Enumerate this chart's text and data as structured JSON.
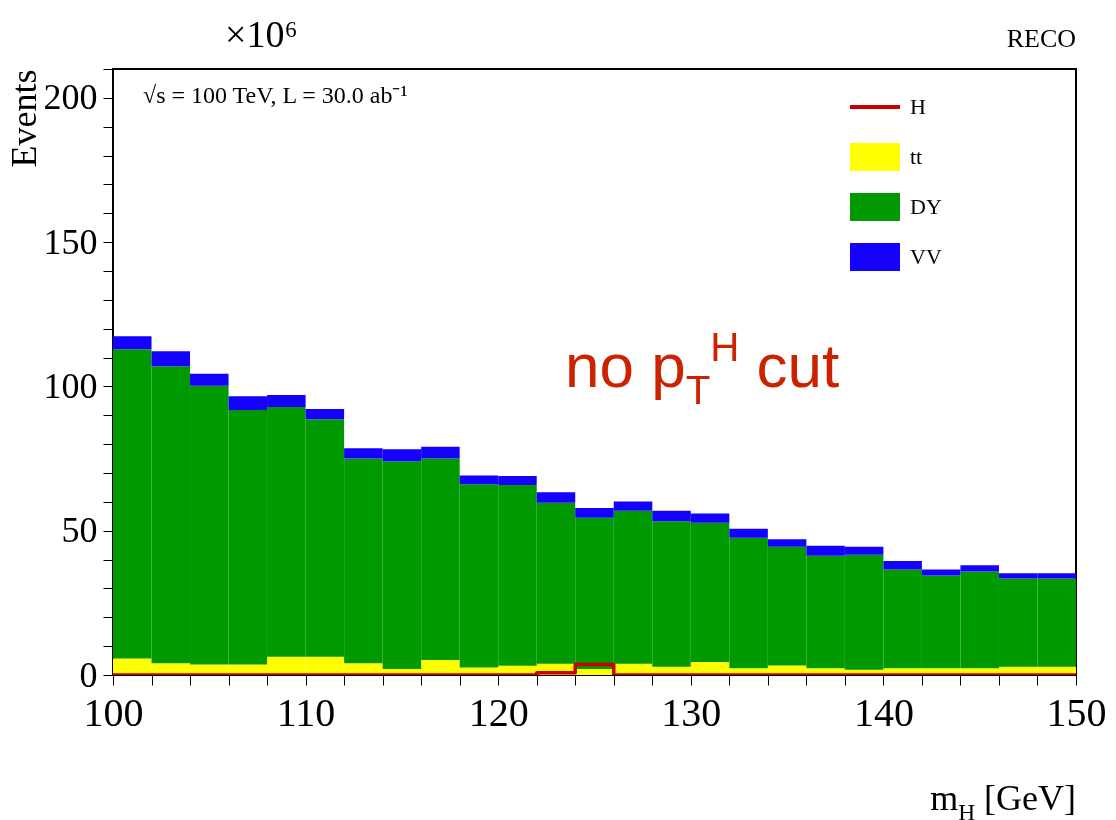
{
  "chart_data": {
    "type": "bar",
    "xlabel": "m$_{H}$ [GeV]",
    "ylabel": "Events",
    "annotations": [
      "×10⁶",
      "√s = 100 TeV, L = 30.0 ab⁻¹",
      "no p$_{T}$$^{H}$ cut",
      "RECO"
    ],
    "x": [
      101,
      103,
      105,
      107,
      109,
      111,
      113,
      115,
      117,
      119,
      121,
      123,
      125,
      127,
      129,
      131,
      133,
      135,
      137,
      139,
      141,
      143,
      145,
      147,
      149
    ],
    "stacked": true,
    "series": [
      {
        "name": "H",
        "type": "step",
        "color": "#cc0000",
        "x": [
          100,
          102,
          104,
          106,
          108,
          110,
          112,
          114,
          116,
          118,
          120,
          122,
          124,
          126,
          128,
          130,
          132,
          134,
          136,
          138,
          140,
          142,
          144,
          146,
          148,
          150
        ],
        "values": [
          0,
          0,
          0,
          0,
          0,
          0,
          0,
          0,
          0,
          0,
          0,
          0.8,
          3.6,
          0,
          0,
          0,
          0,
          0,
          0,
          0,
          0,
          0,
          0,
          0,
          0,
          0
        ]
      },
      {
        "name": "tt",
        "color": "#ffff00",
        "values": [
          5.7,
          4.1,
          3.6,
          3.6,
          6.3,
          6.3,
          4.1,
          2.1,
          5.2,
          2.6,
          3.2,
          3.9,
          2.1,
          3.9,
          2.9,
          4.5,
          2.3,
          3.3,
          2.3,
          1.8,
          2.3,
          2.3,
          2.3,
          2.9,
          2.9
        ]
      },
      {
        "name": "DY",
        "color": "#009900",
        "values": [
          107.2,
          102.9,
          96.6,
          88.2,
          86.6,
          82.3,
          70.9,
          72.0,
          69.8,
          63.5,
          62.6,
          55.8,
          52.4,
          53.0,
          50.4,
          48.3,
          45.3,
          41.1,
          39.0,
          39.9,
          34.3,
          32.2,
          33.6,
          30.5,
          30.5
        ]
      },
      {
        "name": "VV",
        "color": "#1400ff",
        "values": [
          4.5,
          5.2,
          4.2,
          4.8,
          4.1,
          3.6,
          3.6,
          4.1,
          4.1,
          3.0,
          3.2,
          3.6,
          3.4,
          3.2,
          3.6,
          3.2,
          3.1,
          2.6,
          3.5,
          2.7,
          2.9,
          2.1,
          2.1,
          1.9,
          1.9
        ]
      }
    ],
    "xlim": [
      100,
      150
    ],
    "xticks": [
      100,
      {
        "value": 102,
        "label": null
      },
      {
        "value": 104,
        "label": null
      },
      {
        "value": 106,
        "label": null
      },
      {
        "value": 108,
        "label": null
      },
      110,
      {
        "value": 112,
        "label": null
      },
      {
        "value": 114,
        "label": null
      },
      {
        "value": 116,
        "label": null
      },
      {
        "value": 118,
        "label": null
      },
      120,
      {
        "value": 122,
        "label": null
      },
      {
        "value": 124,
        "label": null
      },
      {
        "value": 126,
        "label": null
      },
      {
        "value": 128,
        "label": null
      },
      130,
      {
        "value": 132,
        "label": null
      },
      {
        "value": 134,
        "label": null
      },
      {
        "value": 136,
        "label": null
      },
      {
        "value": 138,
        "label": null
      },
      140,
      {
        "value": 142,
        "label": null
      },
      {
        "value": 144,
        "label": null
      },
      {
        "value": 146,
        "label": null
      },
      {
        "value": 148,
        "label": null
      },
      150
    ],
    "ylim": [
      0,
      210
    ],
    "yticks": [
      0,
      {
        "value": 10,
        "label": null
      },
      {
        "value": 20,
        "label": null
      },
      {
        "value": 30,
        "label": null
      },
      {
        "value": 40,
        "label": null
      },
      50,
      {
        "value": 60,
        "label": null
      },
      {
        "value": 70,
        "label": null
      },
      {
        "value": 80,
        "label": null
      },
      {
        "value": 90,
        "label": null
      },
      100,
      {
        "value": 110,
        "label": null
      },
      {
        "value": 120,
        "label": null
      },
      {
        "value": 130,
        "label": null
      },
      {
        "value": 140,
        "label": null
      },
      150,
      {
        "value": 160,
        "label": null
      },
      {
        "value": 170,
        "label": null
      },
      {
        "value": 180,
        "label": null
      },
      {
        "value": 190,
        "label": null
      },
      200,
      {
        "value": 210,
        "label": null
      }
    ],
    "grid": false,
    "legend": "top right"
  }
}
